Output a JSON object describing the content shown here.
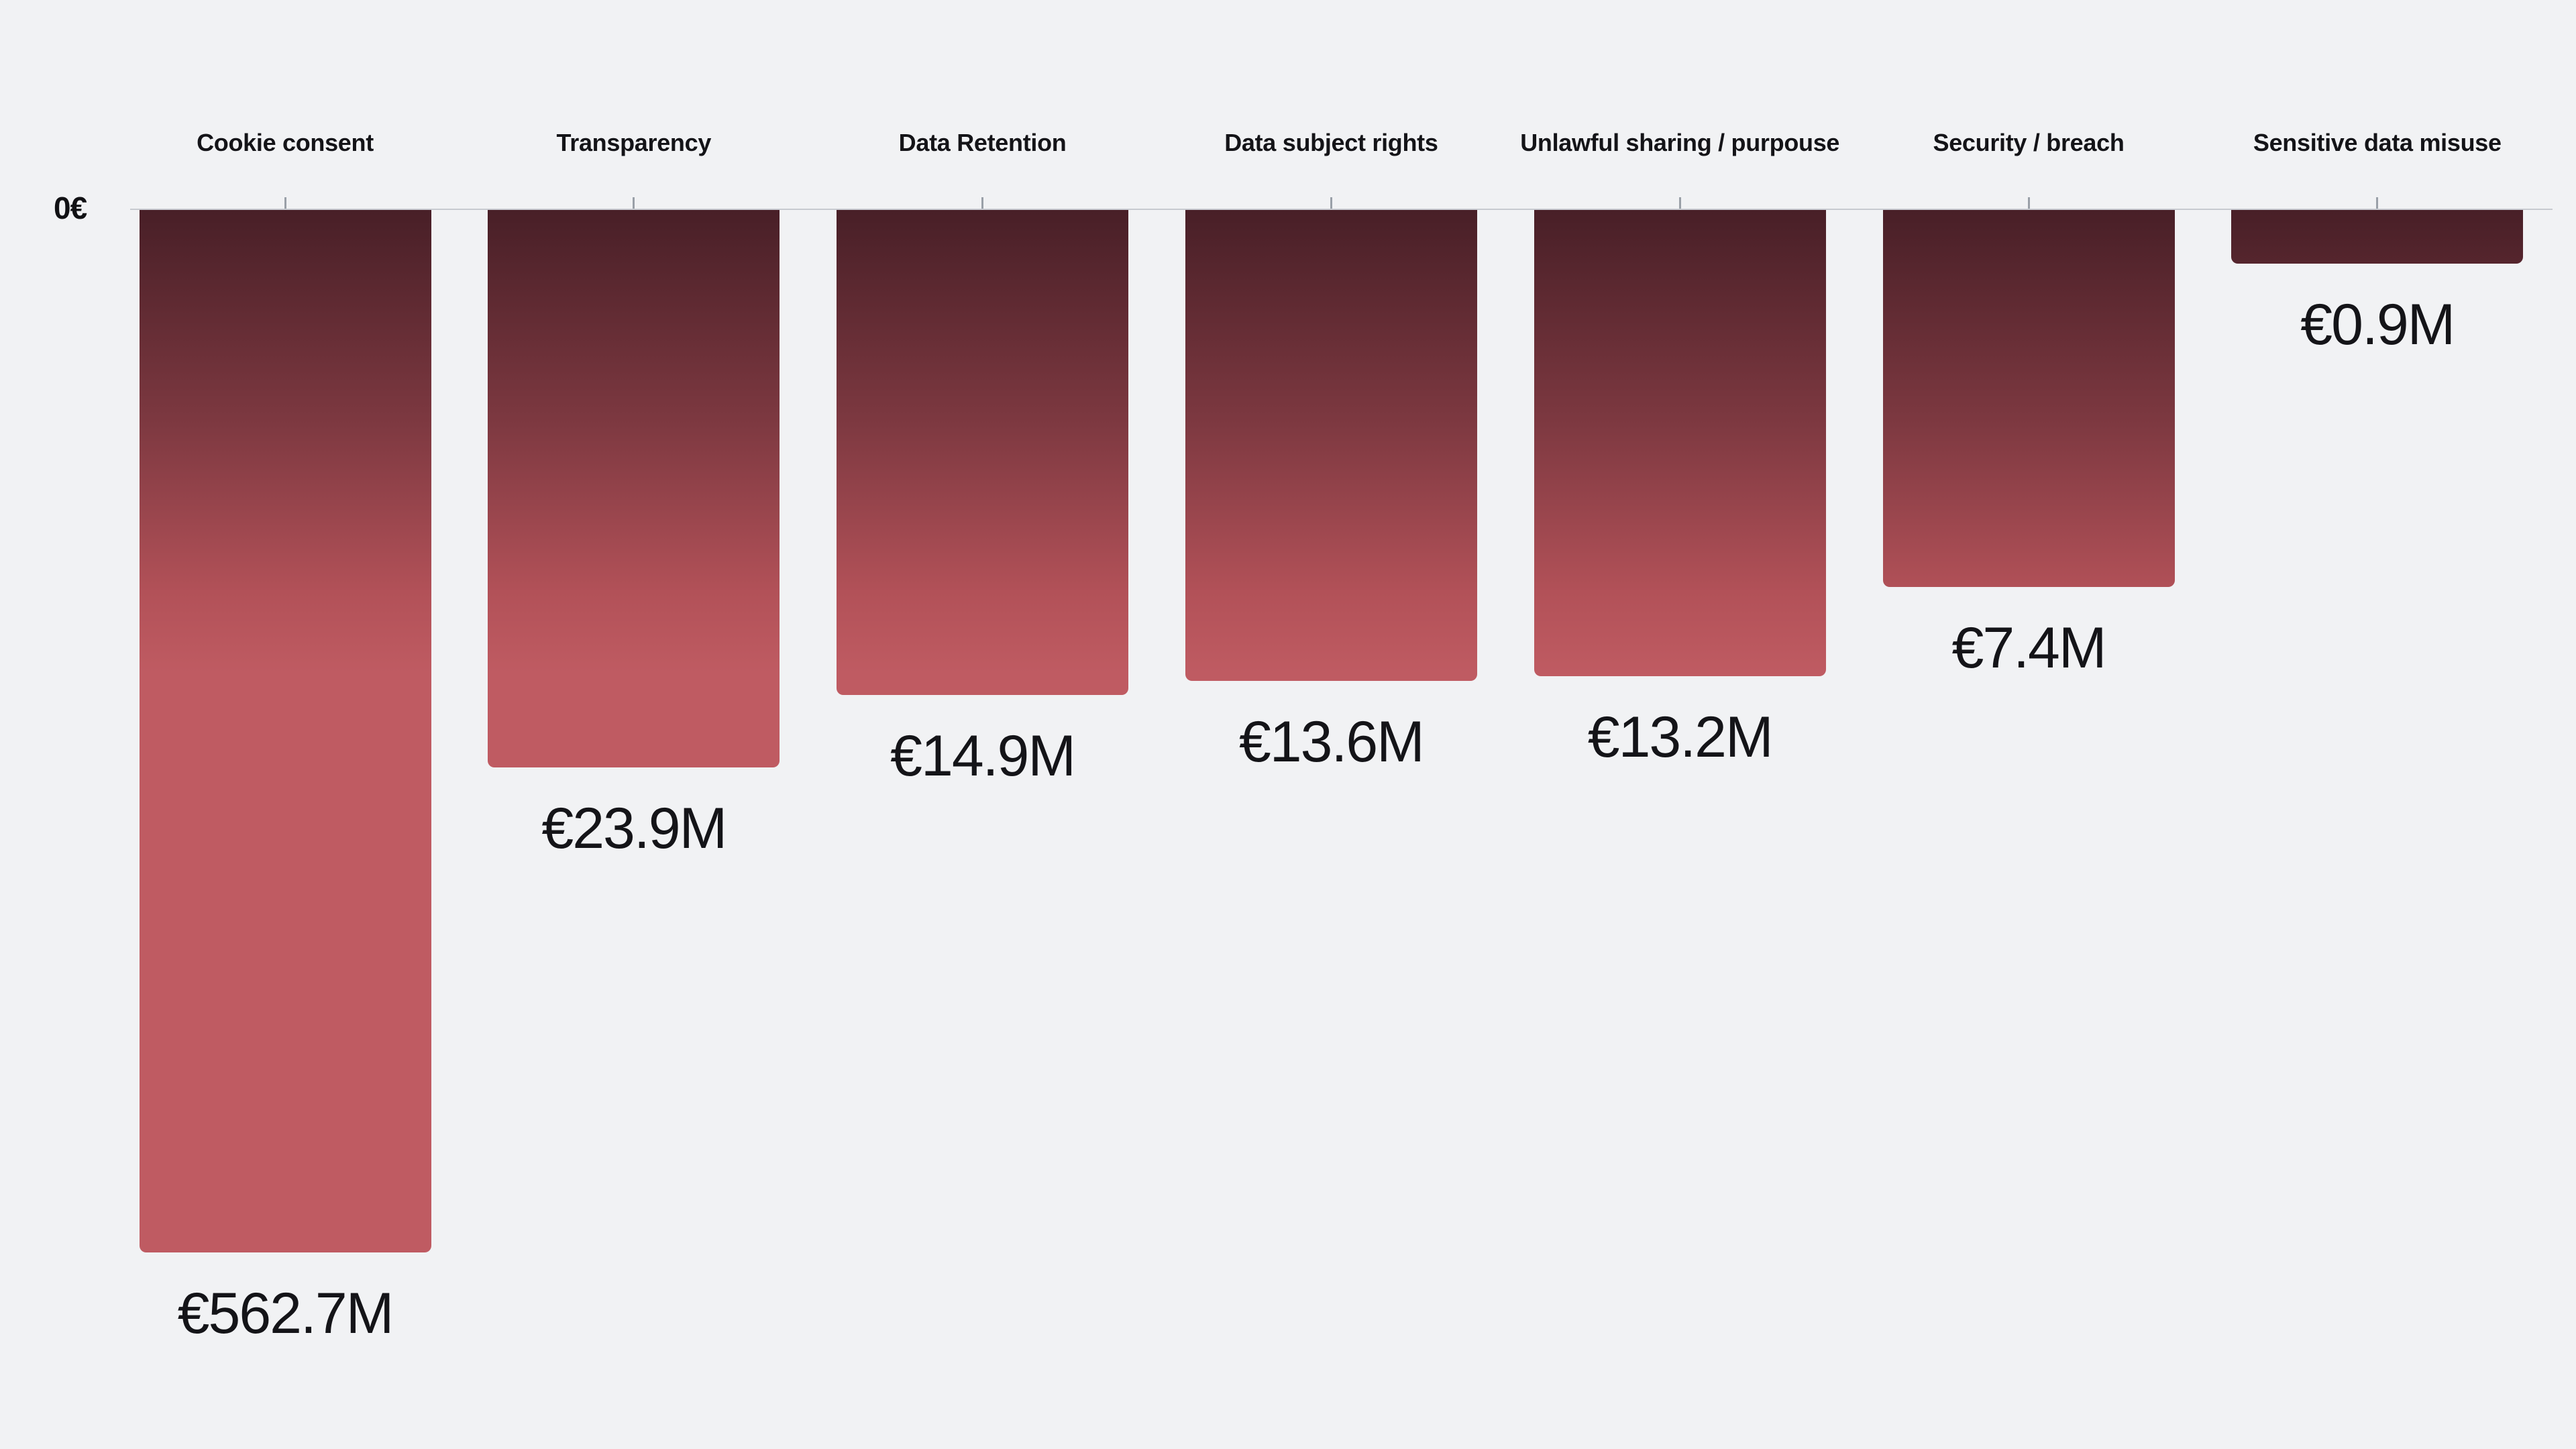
{
  "chart_data": {
    "type": "bar",
    "orientation": "inverted-vertical",
    "scale": "log",
    "title": "",
    "unit": "EUR millions",
    "axis_zero_label": "0€",
    "categories": [
      "Cookie consent",
      "Transparency",
      "Data Retention",
      "Data subject rights",
      "Unlawful sharing / purpouse",
      "Security / breach",
      "Sensitive data misuse"
    ],
    "values": [
      562.7,
      23.9,
      14.9,
      13.6,
      13.2,
      7.4,
      0.9
    ],
    "value_labels": [
      "€562.7M",
      "€23.9M",
      "€14.9M",
      "€13.6M",
      "€13.2M",
      "€7.4M",
      "€0.9M"
    ],
    "legend": "none",
    "grid": "off",
    "colors": {
      "background": "#f1f2f4",
      "axis_line": "#c7cad0",
      "tick": "#9aa0a8",
      "text": "#141418",
      "bar_top": "#481f27",
      "bar_mid1": "#7c3840",
      "bar_mid2": "#b25158",
      "bar_bottom": "#bf5b62"
    }
  }
}
